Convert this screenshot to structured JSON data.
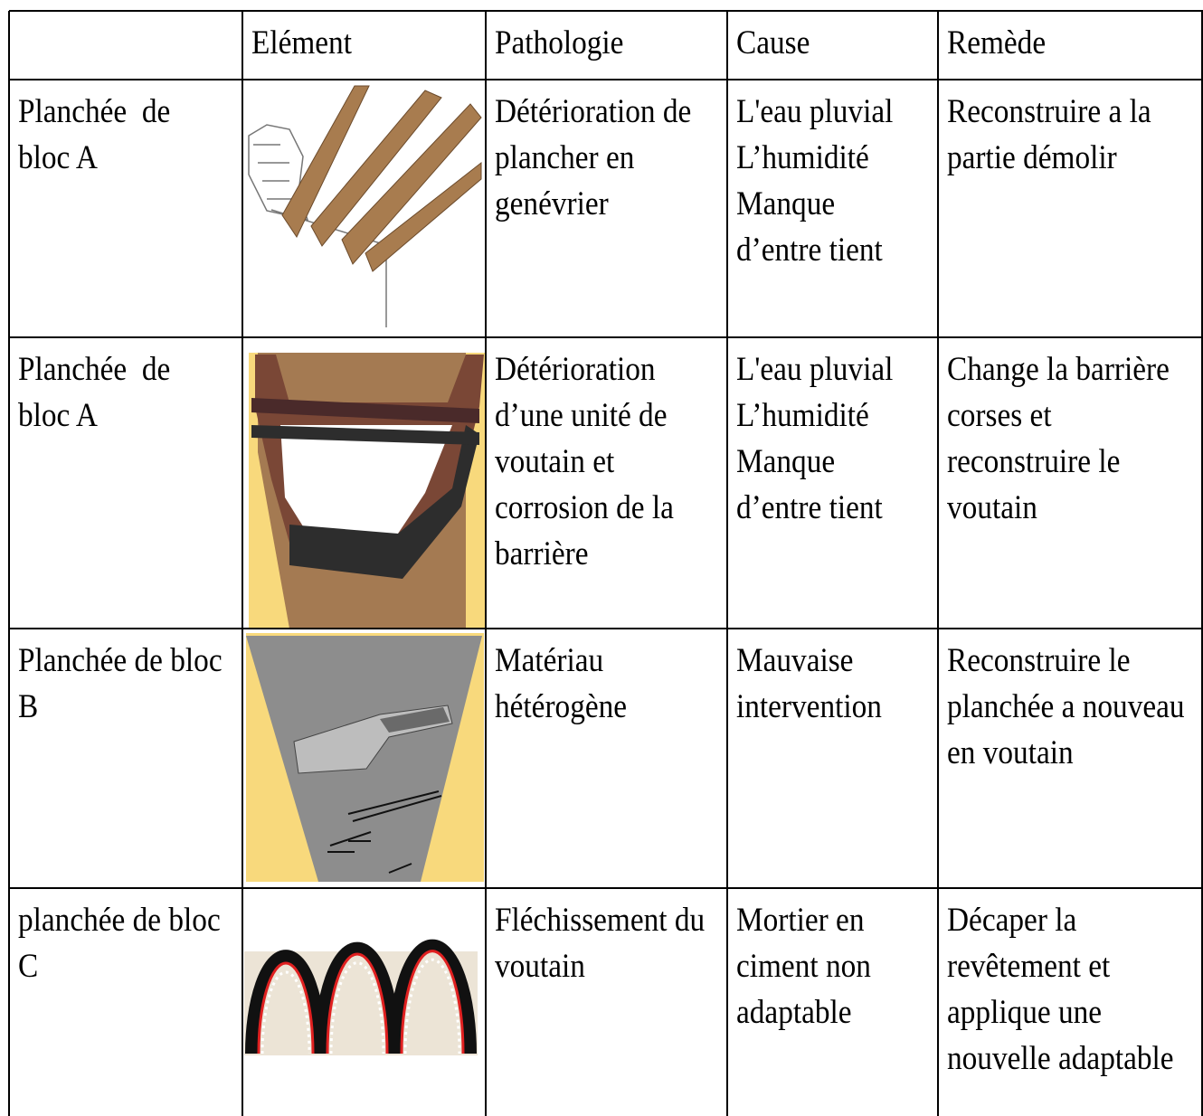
{
  "table": {
    "header": [
      "Elément",
      "Pathologie",
      "Cause",
      "Remède"
    ],
    "rows": [
      {
        "label": [
          "Planchée  de",
          "bloc A"
        ],
        "pathologie": [
          "Détérioration de",
          "plancher en",
          "genévrier"
        ],
        "cause": [
          "L'eau pluvial",
          "L’humidité",
          "Manque",
          "d’entre tient"
        ],
        "remede": [
          "Reconstruire a la",
          "partie démolir"
        ]
      },
      {
        "label": [
          "Planchée  de",
          "bloc A"
        ],
        "pathologie": [
          "Détérioration",
          "d’une unité de",
          "voutain et",
          "corrosion de la",
          "barrière"
        ],
        "cause": [
          "L'eau pluvial",
          "L’humidité",
          "Manque",
          "d’entre tient"
        ],
        "remede": [
          "Change la barrière",
          "corses et",
          "reconstruire le",
          "voutain"
        ]
      },
      {
        "label": [
          "Planchée de bloc",
          "B"
        ],
        "pathologie": [
          "Matériau",
          "hétérogène"
        ],
        "cause": [
          "Mauvaise",
          "intervention"
        ],
        "remede": [
          "Reconstruire le",
          "planchée a nouveau",
          "en voutain"
        ]
      },
      {
        "label": [
          "planchée de bloc",
          "C"
        ],
        "pathologie": [
          "Fléchissement du",
          "voutain"
        ],
        "cause": [
          "Mortier en",
          "ciment non",
          "adaptable"
        ],
        "remede": [
          "Décaper la",
          "revêtement et",
          "applique une",
          "nouvelle adaptable"
        ]
      }
    ]
  }
}
